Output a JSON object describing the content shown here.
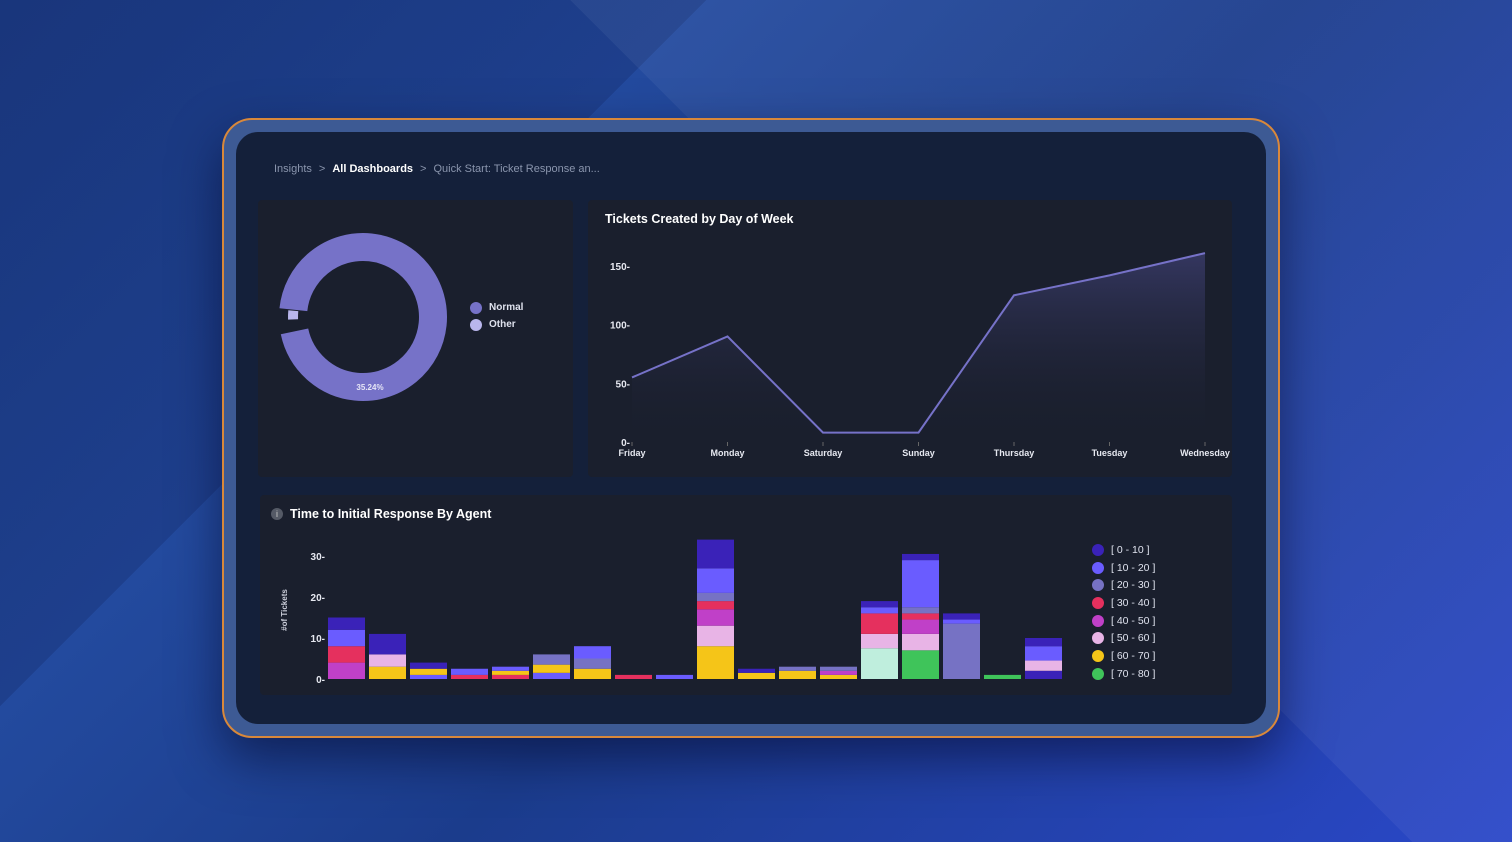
{
  "breadcrumb": {
    "items": [
      "Insights",
      "All Dashboards",
      "Quick Start: Ticket Response an..."
    ],
    "separator": ">"
  },
  "donut": {
    "legend": [
      "Normal",
      "Other"
    ],
    "colors": [
      "#7672c8",
      "#b9b6ec"
    ],
    "label": "35.24%"
  },
  "chart_data": [
    {
      "type": "line",
      "title": "Tickets Created by Day of Week",
      "categories": [
        "Friday",
        "Monday",
        "Saturday",
        "Sunday",
        "Thursday",
        "Tuesday",
        "Wednesday"
      ],
      "values": [
        55,
        90,
        8,
        8,
        125,
        142,
        161
      ],
      "yticks": [
        0,
        50,
        100,
        150
      ],
      "ylim": [
        0,
        165
      ],
      "color": "#7672c8"
    },
    {
      "type": "bar",
      "title": "Time to Initial Response By Agent",
      "ylabel": "#of Tickets",
      "yticks": [
        0,
        10,
        20,
        30
      ],
      "ylim": [
        0,
        34
      ],
      "series": [
        {
          "name": "[ 0 - 10 ]",
          "color": "#3a22b8"
        },
        {
          "name": "[ 10 - 20 ]",
          "color": "#6a5cff"
        },
        {
          "name": "[ 20 - 30 ]",
          "color": "#7672c4"
        },
        {
          "name": "[ 30 - 40 ]",
          "color": "#e5305e"
        },
        {
          "name": "[ 40 - 50 ]",
          "color": "#c040c8"
        },
        {
          "name": "[ 50 - 60 ]",
          "color": "#e8b4e6"
        },
        {
          "name": "[ 60 - 70 ]",
          "color": "#f5c518"
        },
        {
          "name": "[ 70 - 80 ]",
          "color": "#3fc45a"
        }
      ],
      "stacks": [
        [
          [
            4,
            4
          ],
          [
            3,
            4
          ],
          [
            1,
            4
          ],
          [
            0,
            3
          ]
        ],
        [
          [
            6,
            3
          ],
          [
            5,
            3
          ],
          [
            0,
            5
          ]
        ],
        [
          [
            1,
            1
          ],
          [
            6,
            1.5
          ],
          [
            0,
            1.5
          ]
        ],
        [
          [
            3,
            1
          ],
          [
            1,
            1.5
          ]
        ],
        [
          [
            3,
            1
          ],
          [
            6,
            1
          ],
          [
            1,
            1
          ]
        ],
        [
          [
            1,
            1.5
          ],
          [
            6,
            2
          ],
          [
            2,
            2.5
          ]
        ],
        [
          [
            6,
            2.5
          ],
          [
            2,
            2.5
          ],
          [
            1,
            3
          ]
        ],
        [
          [
            3,
            1
          ]
        ],
        [
          [
            1,
            1
          ]
        ],
        [
          [
            6,
            8
          ],
          [
            5,
            5
          ],
          [
            4,
            4
          ],
          [
            3,
            2
          ],
          [
            2,
            2
          ],
          [
            1,
            6
          ],
          [
            0,
            7
          ]
        ],
        [
          [
            6,
            1.5
          ],
          [
            0,
            1
          ]
        ],
        [
          [
            6,
            2
          ],
          [
            2,
            1
          ]
        ],
        [
          [
            6,
            1
          ],
          [
            4,
            1
          ],
          [
            2,
            1
          ]
        ],
        [
          [
            7,
            7.5
          ],
          [
            5,
            3.5
          ],
          [
            3,
            5
          ],
          [
            1,
            1.5
          ],
          [
            0,
            1.5
          ]
        ],
        [
          [
            7,
            7
          ],
          [
            5,
            4
          ],
          [
            4,
            3.5
          ],
          [
            3,
            1.5
          ],
          [
            2,
            1.5
          ],
          [
            1,
            11.5
          ],
          [
            0,
            1.5
          ]
        ],
        [
          [
            2,
            13.5
          ],
          [
            1,
            1
          ],
          [
            0,
            1.5
          ]
        ],
        [
          [
            7,
            1
          ]
        ],
        [
          [
            0,
            2
          ],
          [
            5,
            2.5
          ],
          [
            1,
            3.5
          ],
          [
            0,
            2
          ]
        ]
      ]
    }
  ]
}
